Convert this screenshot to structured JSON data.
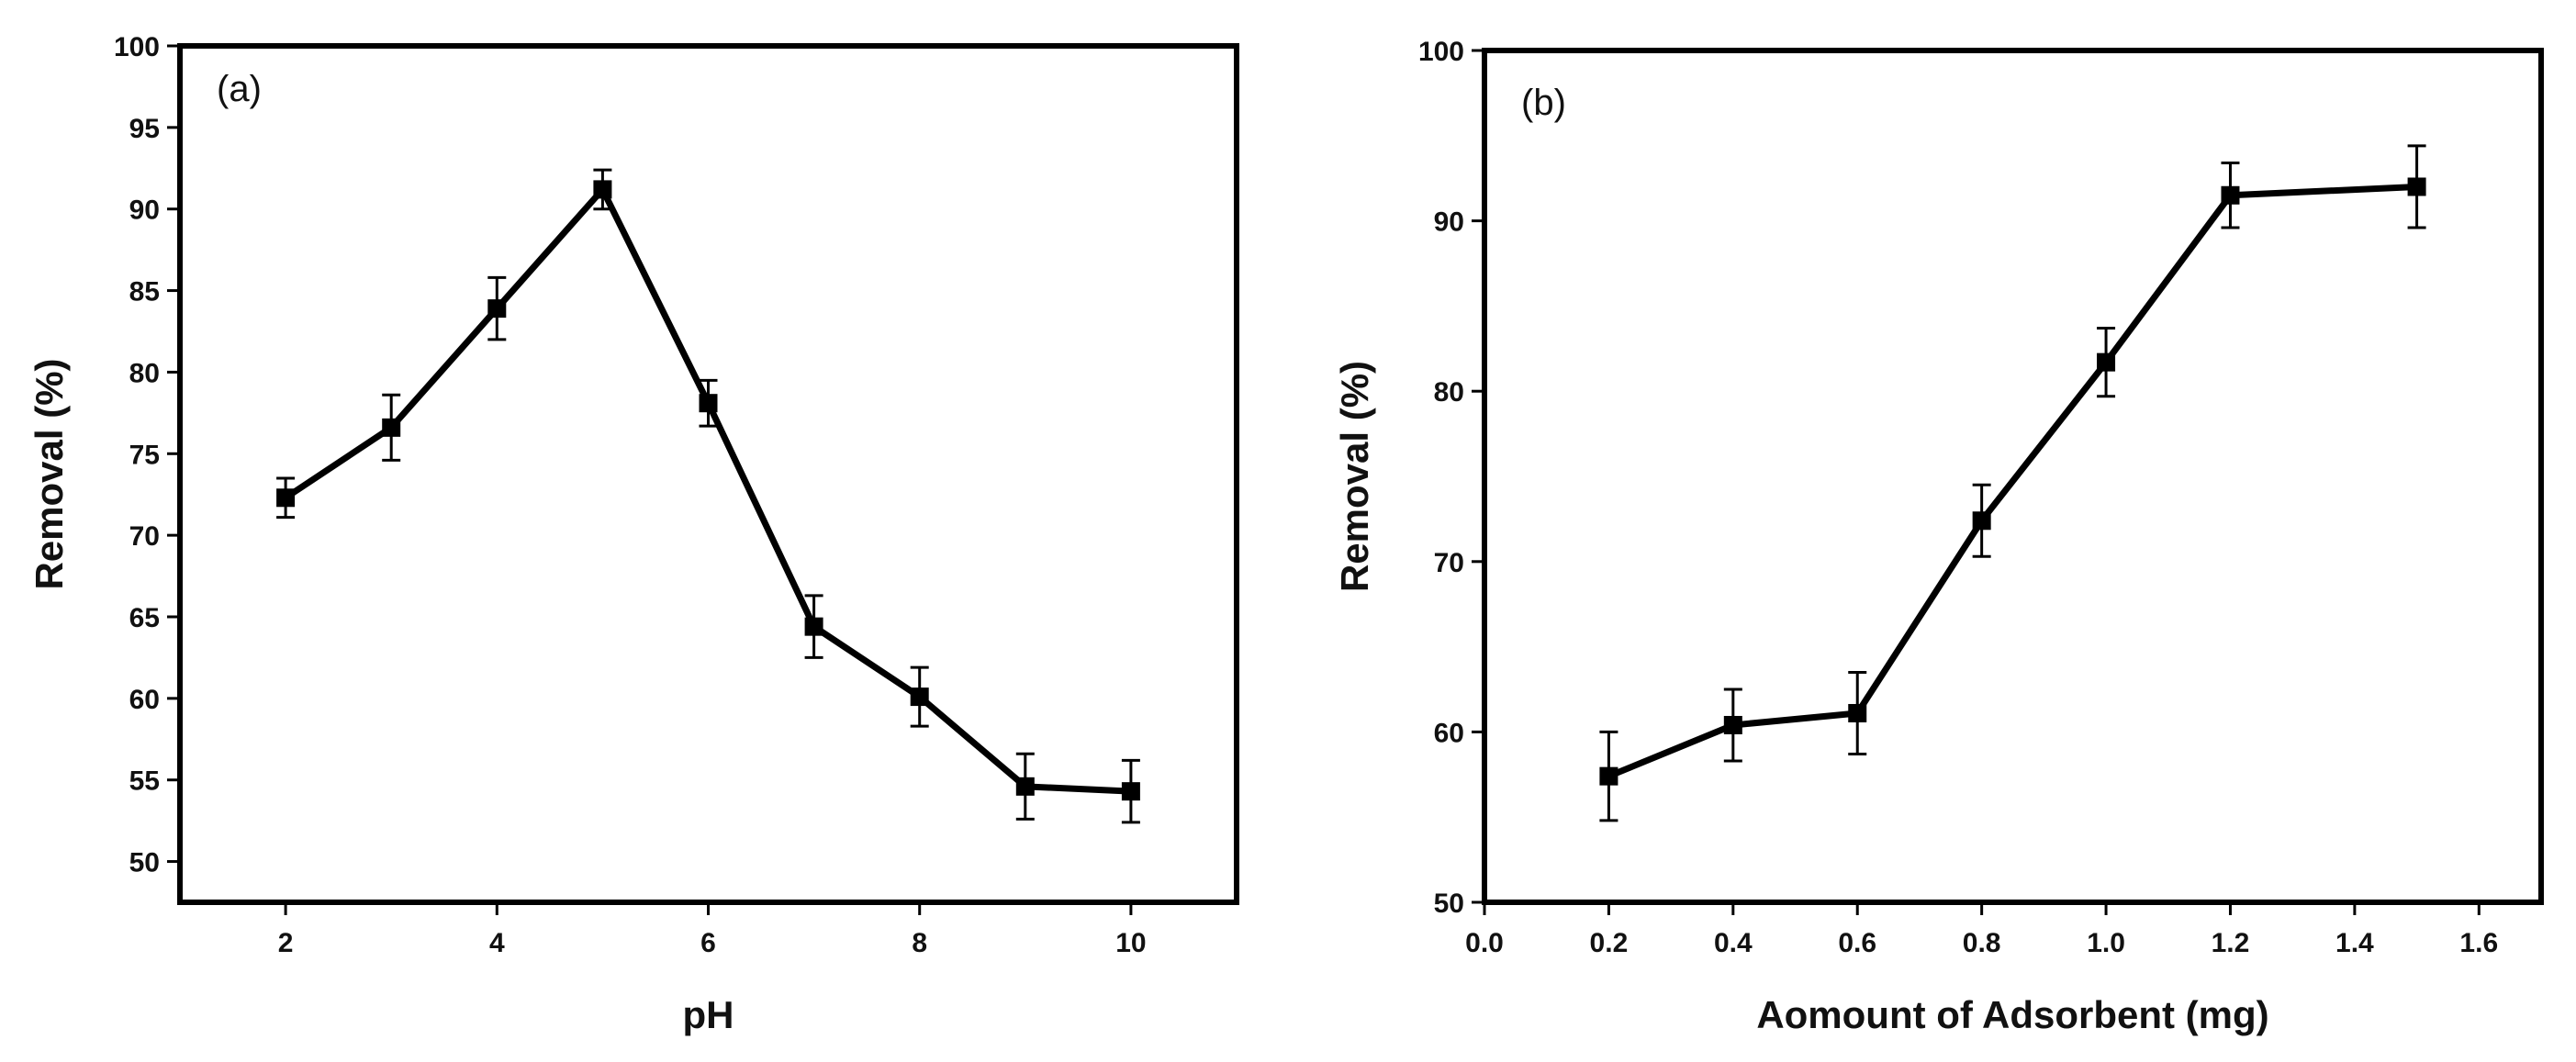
{
  "chart_data": [
    {
      "panel": "(a)",
      "type": "line",
      "title": "",
      "xlabel": "pH",
      "ylabel": "Removal (%)",
      "xlim": [
        1,
        11
      ],
      "ylim": [
        47.5,
        100
      ],
      "xticks": [
        2,
        4,
        6,
        8,
        10
      ],
      "yticks": [
        50,
        55,
        60,
        65,
        70,
        75,
        80,
        85,
        90,
        95,
        100
      ],
      "xtick_labels": [
        "2",
        "4",
        "6",
        "8",
        "10"
      ],
      "ytick_labels": [
        "50",
        "55",
        "60",
        "65",
        "70",
        "75",
        "80",
        "85",
        "90",
        "95",
        "100"
      ],
      "grid": false,
      "series": [
        {
          "name": "Removal",
          "x": [
            2,
            3,
            4,
            5,
            6,
            7,
            8,
            9,
            10
          ],
          "y": [
            72.3,
            76.6,
            83.9,
            91.2,
            78.1,
            64.4,
            60.1,
            54.6,
            54.3
          ],
          "err": [
            1.2,
            2.0,
            1.9,
            1.2,
            1.4,
            1.9,
            1.8,
            2.0,
            1.9
          ]
        }
      ]
    },
    {
      "panel": "(b)",
      "type": "line",
      "title": "",
      "xlabel": "Aomount of Adsorbent (mg)",
      "ylabel": "Removal (%)",
      "xlim": [
        0,
        1.7
      ],
      "ylim": [
        50,
        100
      ],
      "xticks": [
        0.0,
        0.2,
        0.4,
        0.6,
        0.8,
        1.0,
        1.2,
        1.4,
        1.6
      ],
      "yticks": [
        50,
        60,
        70,
        80,
        90,
        100
      ],
      "xtick_labels": [
        "0.0",
        "0.2",
        "0.4",
        "0.6",
        "0.8",
        "1.0",
        "1.2",
        "1.4",
        "1.6"
      ],
      "ytick_labels": [
        "50",
        "60",
        "70",
        "80",
        "90",
        "100"
      ],
      "grid": false,
      "series": [
        {
          "name": "Removal",
          "x": [
            0.2,
            0.4,
            0.6,
            0.8,
            1.0,
            1.2,
            1.5
          ],
          "y": [
            57.4,
            60.4,
            61.1,
            72.4,
            81.7,
            91.5,
            92.0
          ],
          "err": [
            2.6,
            2.1,
            2.4,
            2.1,
            2.0,
            1.9,
            2.4
          ]
        }
      ]
    }
  ]
}
